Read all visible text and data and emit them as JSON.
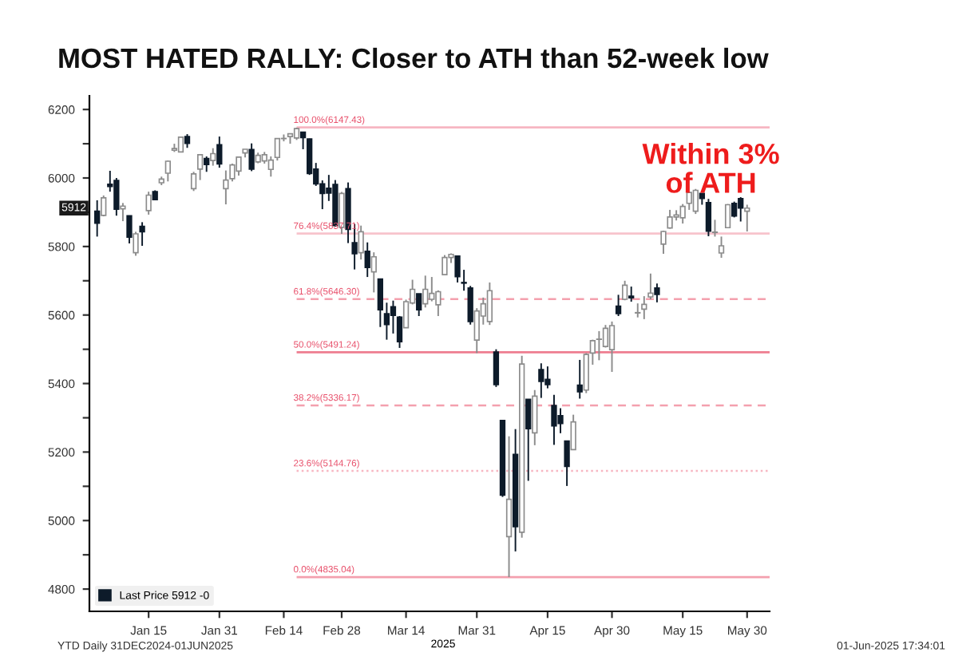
{
  "chart_data": {
    "type": "candlestick",
    "title": "MOST HATED RALLY: Closer to ATH than 52-week low",
    "xlabel": "2025",
    "categories": [
      null,
      null,
      null,
      null,
      null,
      null,
      null,
      null,
      "Jan 15",
      null,
      null,
      null,
      null,
      null,
      null,
      null,
      null,
      null,
      null,
      "Jan 31",
      null,
      null,
      null,
      null,
      null,
      null,
      null,
      null,
      null,
      "Feb 14",
      null,
      null,
      null,
      null,
      null,
      null,
      null,
      null,
      "Feb 28",
      null,
      null,
      null,
      null,
      null,
      null,
      null,
      null,
      null,
      "Mar 14",
      null,
      null,
      null,
      null,
      null,
      null,
      null,
      null,
      null,
      null,
      "Mar 31",
      null,
      null,
      null,
      null,
      null,
      null,
      null,
      null,
      null,
      null,
      "Apr 15",
      null,
      null,
      null,
      null,
      null,
      null,
      null,
      null,
      null,
      "Apr 30",
      null,
      null,
      null,
      null,
      null,
      null,
      null,
      null,
      null,
      null,
      "May 15",
      null,
      null,
      null,
      null,
      null,
      null,
      null,
      null,
      null,
      "May 30"
    ],
    "series": [
      {
        "name": "Last Price 5912 -0",
        "color": "#0d1b2a",
        "colors": [
          "#0d1b2a",
          "#ffffff",
          "#0d1b2a",
          "#0d1b2a",
          "#ffffff",
          "#0d1b2a",
          "#ffffff",
          "#0d1b2a",
          "#ffffff",
          "#0d1b2a",
          "#ffffff",
          "#ffffff",
          "#ffffff",
          "#ffffff",
          "#0d1b2a",
          "#ffffff",
          "#ffffff",
          "#0d1b2a",
          "#ffffff",
          "#0d1b2a",
          "#ffffff",
          "#ffffff",
          "#ffffff",
          "#ffffff",
          "#0d1b2a",
          "#ffffff",
          "#ffffff",
          "#ffffff",
          "#ffffff",
          "#ffffff",
          "#ffffff",
          "#ffffff",
          "#0d1b2a",
          "#0d1b2a",
          "#0d1b2a",
          "#0d1b2a",
          "#0d1b2a",
          "#0d1b2a",
          "#ffffff",
          "#0d1b2a",
          "#0d1b2a",
          "#ffffff",
          "#0d1b2a",
          "#ffffff",
          "#0d1b2a",
          "#0d1b2a",
          "#0d1b2a",
          "#0d1b2a",
          "#ffffff",
          "#ffffff",
          "#0d1b2a",
          "#ffffff",
          "#ffffff",
          "#ffffff",
          "#ffffff",
          "#ffffff",
          "#0d1b2a",
          "#0d1b2a",
          "#0d1b2a",
          "#ffffff",
          "#ffffff",
          "#ffffff",
          "#0d1b2a",
          "#0d1b2a",
          "#ffffff",
          "#0d1b2a",
          "#ffffff",
          "#0d1b2a",
          "#ffffff",
          "#0d1b2a",
          "#0d1b2a",
          "#0d1b2a",
          "#0d1b2a",
          "#0d1b2a",
          "#ffffff",
          "#0d1b2a",
          "#ffffff",
          "#ffffff",
          "#ffffff",
          "#ffffff",
          "#ffffff",
          "#0d1b2a",
          "#ffffff",
          "#0d1b2a",
          "#ffffff",
          "#ffffff",
          "#ffffff",
          "#0d1b2a",
          "#ffffff",
          "#ffffff",
          "#ffffff",
          "#ffffff",
          "#ffffff",
          "#ffffff",
          "#0d1b2a",
          "#0d1b2a",
          "#ffffff",
          "#ffffff",
          "#ffffff",
          "#0d1b2a",
          "#0d1b2a",
          "#ffffff"
        ],
        "ohlc": [
          [
            5903,
            5935,
            5829,
            5868
          ],
          [
            5891,
            5949,
            5888,
            5942
          ],
          [
            5982,
            6021,
            5960,
            5975
          ],
          [
            5993,
            6000,
            5890,
            5909
          ],
          [
            5910,
            5927,
            5874,
            5918
          ],
          [
            5890,
            5890,
            5809,
            5827
          ],
          [
            5782,
            5843,
            5773,
            5837
          ],
          [
            5859,
            5871,
            5802,
            5843
          ],
          [
            5905,
            5960,
            5893,
            5950
          ],
          [
            5960,
            5964,
            5935,
            5937
          ],
          [
            5986,
            6004,
            5979,
            5997
          ],
          [
            6014,
            6051,
            5990,
            6049
          ],
          [
            6081,
            6100,
            6076,
            6086
          ],
          [
            6076,
            6119,
            6075,
            6119
          ],
          [
            6121,
            6128,
            6088,
            6101
          ],
          [
            5969,
            6018,
            5962,
            6012
          ],
          [
            6026,
            6070,
            5994,
            6068
          ],
          [
            6057,
            6063,
            6018,
            6039
          ],
          [
            6051,
            6087,
            6036,
            6071
          ],
          [
            6097,
            6121,
            6030,
            6041
          ],
          [
            5969,
            6022,
            5923,
            5994
          ],
          [
            5998,
            6042,
            5990,
            6038
          ],
          [
            6020,
            6062,
            6007,
            6061
          ],
          [
            6073,
            6084,
            6060,
            6084
          ],
          [
            6083,
            6101,
            6020,
            6026
          ],
          [
            6047,
            6074,
            6043,
            6066
          ],
          [
            6050,
            6076,
            6042,
            6068
          ],
          [
            6025,
            6063,
            6004,
            6052
          ],
          [
            6060,
            6116,
            6051,
            6115
          ],
          [
            6115,
            6127,
            6107,
            6115
          ],
          [
            6121,
            6129,
            6100,
            6129
          ],
          [
            6117,
            6147,
            6111,
            6144
          ],
          [
            6134,
            6134,
            6084,
            6118
          ],
          [
            6114,
            6115,
            6009,
            6013
          ],
          [
            6026,
            6044,
            5977,
            5983
          ],
          [
            5983,
            5993,
            5909,
            5955
          ],
          [
            5970,
            6009,
            5933,
            5956
          ],
          [
            5981,
            5994,
            5858,
            5861
          ],
          [
            5856,
            5959,
            5837,
            5955
          ],
          [
            5969,
            5987,
            5810,
            5850
          ],
          [
            5811,
            5866,
            5733,
            5779
          ],
          [
            5782,
            5861,
            5762,
            5843
          ],
          [
            5786,
            5812,
            5711,
            5739
          ],
          [
            5726,
            5783,
            5666,
            5770
          ],
          [
            5705,
            5705,
            5565,
            5615
          ],
          [
            5604,
            5636,
            5528,
            5572
          ],
          [
            5624,
            5642,
            5546,
            5599
          ],
          [
            5594,
            5597,
            5504,
            5522
          ],
          [
            5563,
            5645,
            5563,
            5639
          ],
          [
            5635,
            5703,
            5631,
            5675
          ],
          [
            5662,
            5662,
            5597,
            5615
          ],
          [
            5633,
            5715,
            5622,
            5675
          ],
          [
            5646,
            5711,
            5640,
            5663
          ],
          [
            5630,
            5672,
            5597,
            5668
          ],
          [
            5718,
            5775,
            5718,
            5768
          ],
          [
            5768,
            5780,
            5752,
            5777
          ],
          [
            5772,
            5772,
            5695,
            5712
          ],
          [
            5695,
            5732,
            5671,
            5693
          ],
          [
            5679,
            5685,
            5572,
            5581
          ],
          [
            5527,
            5620,
            5489,
            5612
          ],
          [
            5597,
            5651,
            5572,
            5633
          ],
          [
            5581,
            5695,
            5571,
            5671
          ],
          [
            5492,
            5500,
            5390,
            5397
          ],
          [
            5292,
            5292,
            5069,
            5074
          ],
          [
            4953,
            5246,
            4835,
            5062
          ],
          [
            5193,
            5267,
            4910,
            4982
          ],
          [
            4966,
            5481,
            4950,
            5457
          ],
          [
            5354,
            5354,
            5116,
            5268
          ],
          [
            5256,
            5381,
            5220,
            5363
          ],
          [
            5441,
            5459,
            5358,
            5406
          ],
          [
            5412,
            5450,
            5386,
            5397
          ],
          [
            5336,
            5367,
            5221,
            5276
          ],
          [
            5306,
            5328,
            5255,
            5283
          ],
          [
            5232,
            5232,
            5101,
            5158
          ],
          [
            5207,
            5309,
            5207,
            5288
          ],
          [
            5395,
            5469,
            5356,
            5376
          ],
          [
            5381,
            5489,
            5372,
            5485
          ],
          [
            5489,
            5528,
            5455,
            5525
          ],
          [
            5529,
            5553,
            5468,
            5529
          ],
          [
            5508,
            5571,
            5505,
            5561
          ],
          [
            5499,
            5581,
            5434,
            5569
          ],
          [
            5626,
            5659,
            5597,
            5604
          ],
          [
            5646,
            5700,
            5643,
            5687
          ],
          [
            5655,
            5683,
            5639,
            5650
          ],
          [
            5606,
            5634,
            5593,
            5607
          ],
          [
            5617,
            5655,
            5588,
            5631
          ],
          [
            5653,
            5721,
            5646,
            5664
          ],
          [
            5679,
            5692,
            5637,
            5660
          ],
          [
            5807,
            5846,
            5779,
            5844
          ],
          [
            5854,
            5907,
            5852,
            5886
          ],
          [
            5886,
            5906,
            5876,
            5892
          ],
          [
            5884,
            5924,
            5867,
            5917
          ],
          [
            5926,
            5959,
            5907,
            5958
          ],
          [
            5903,
            5968,
            5895,
            5964
          ],
          [
            5955,
            5956,
            5922,
            5940
          ],
          [
            5928,
            5939,
            5830,
            5845
          ],
          [
            5841,
            5878,
            5829,
            5842
          ],
          [
            5781,
            5829,
            5767,
            5802
          ],
          [
            5855,
            5924,
            5855,
            5922
          ],
          [
            5926,
            5931,
            5885,
            5889
          ],
          [
            5940,
            5944,
            5873,
            5912
          ],
          [
            5903,
            5922,
            5844,
            5912
          ]
        ]
      }
    ],
    "ylim": [
      4735,
      6240
    ],
    "yticks": [
      4800,
      {
        "value": 4900,
        "label": null
      },
      5000,
      {
        "value": 5100,
        "label": null
      },
      5200,
      {
        "value": 5300,
        "label": null
      },
      5400,
      {
        "value": 5500,
        "label": null
      },
      5600,
      {
        "value": 5700,
        "label": null
      },
      5800,
      {
        "value": 5900,
        "label": null
      },
      6000,
      {
        "value": 6100,
        "label": null
      },
      6200
    ],
    "ref_lines": [
      {
        "axis": "y",
        "value": 6147.43,
        "label": "100.0%(6147.43)",
        "color": "#f7b6c2",
        "line_style": "solid"
      },
      {
        "axis": "y",
        "value": 5837.71,
        "label": "76.4%(5837.71)",
        "color": "#f7c3cc",
        "line_style": "solid"
      },
      {
        "axis": "y",
        "value": 5646.3,
        "label": "61.8%(5646.30)",
        "color": "#f4a0ae",
        "line_style": "dashed"
      },
      {
        "axis": "y",
        "value": 5491.24,
        "label": "50.0%(5491.24)",
        "color": "#ee7d90",
        "line_style": "solid"
      },
      {
        "axis": "y",
        "value": 5336.17,
        "label": "38.2%(5336.17)",
        "color": "#f4a0ae",
        "line_style": "dashed"
      },
      {
        "axis": "y",
        "value": 5144.76,
        "label": "23.6%(5144.76)",
        "color": "#f7b6c2",
        "line_style": "dotted"
      },
      {
        "axis": "y",
        "value": 4835.04,
        "label": "0.0%(4835.04)",
        "color": "#f4a0ae",
        "line_style": "solid"
      }
    ],
    "annotations": [
      "5912",
      "Within 3%\nof ATH",
      "YTD Daily 31DEC2024-01JUN2025",
      "01-Jun-2025 17:34:01"
    ],
    "legend": "bottom left",
    "grid": false
  }
}
